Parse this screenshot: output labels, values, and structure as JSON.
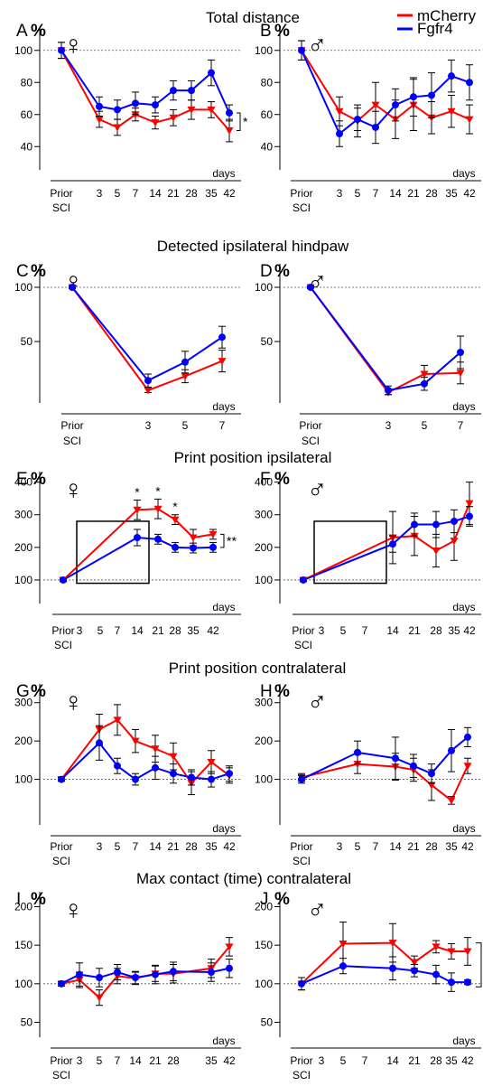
{
  "legend": {
    "entries": [
      {
        "name": "mCherry",
        "color": "#ff0000"
      },
      {
        "name": "Fgfr4",
        "color": "#0000ff"
      }
    ]
  },
  "row_titles": [
    "Total distance",
    "Detected ipsilateral hindpaw",
    "Print position ipsilateral",
    "Print position contralateral",
    "Max contact (time) contralateral"
  ],
  "x_labels": {
    "days": "days",
    "prior": "Prior",
    "sci": "SCI"
  },
  "sex_symbols": {
    "female": "♀",
    "male": "♂"
  },
  "chart_data": [
    {
      "type": "line",
      "panel": "A",
      "unit": "%",
      "sex": "female",
      "x": [
        "Prior SCI",
        "3",
        "5",
        "7",
        "14",
        "21",
        "28",
        "35",
        "42"
      ],
      "ylim": [
        30,
        110
      ],
      "yticks": [
        40,
        60,
        80,
        100
      ],
      "reference_line": 100,
      "series": [
        {
          "name": "mCherry",
          "values": [
            100,
            57,
            52,
            60,
            55,
            58,
            63,
            63,
            50
          ],
          "errors": [
            5,
            5,
            5,
            4,
            4,
            5,
            6,
            5,
            7
          ]
        },
        {
          "name": "Fgfr4",
          "values": [
            100,
            65,
            63,
            67,
            66,
            75,
            75,
            86,
            61
          ],
          "errors": [
            5,
            6,
            6,
            7,
            5,
            6,
            6,
            8,
            5
          ]
        }
      ],
      "annotations": [
        {
          "text": "*",
          "at": "42"
        }
      ]
    },
    {
      "type": "line",
      "panel": "B",
      "unit": "%",
      "sex": "male",
      "x": [
        "Prior SCI",
        "3",
        "5",
        "7",
        "14",
        "21",
        "28",
        "35",
        "42"
      ],
      "ylim": [
        30,
        110
      ],
      "yticks": [
        40,
        60,
        80,
        100
      ],
      "reference_line": 100,
      "series": [
        {
          "name": "mCherry",
          "values": [
            100,
            62,
            56,
            66,
            57,
            66,
            58,
            62,
            57
          ],
          "errors": [
            6,
            9,
            10,
            14,
            12,
            16,
            10,
            10,
            9
          ]
        },
        {
          "name": "Fgfr4",
          "values": [
            100,
            48,
            57,
            52,
            66,
            71,
            72,
            84,
            80
          ],
          "errors": [
            6,
            8,
            7,
            10,
            10,
            12,
            14,
            10,
            11
          ]
        }
      ]
    },
    {
      "type": "line",
      "panel": "C",
      "unit": "%",
      "sex": "female",
      "x": [
        "Prior SCI",
        "3",
        "5",
        "7"
      ],
      "ylim": [
        0,
        115
      ],
      "yticks": [
        50,
        100
      ],
      "reference_line": 100,
      "series": [
        {
          "name": "mCherry",
          "values": [
            100,
            5,
            18,
            32
          ],
          "errors": [
            1,
            2,
            6,
            10
          ]
        },
        {
          "name": "Fgfr4",
          "values": [
            100,
            14,
            31,
            54
          ],
          "errors": [
            1,
            6,
            10,
            10
          ]
        }
      ]
    },
    {
      "type": "line",
      "panel": "D",
      "unit": "%",
      "sex": "male",
      "x": [
        "Prior SCI",
        "3",
        "5",
        "7"
      ],
      "ylim": [
        0,
        115
      ],
      "yticks": [
        50,
        100
      ],
      "reference_line": 100,
      "series": [
        {
          "name": "mCherry",
          "values": [
            100,
            3,
            20,
            21
          ],
          "errors": [
            1,
            2,
            8,
            10
          ]
        },
        {
          "name": "Fgfr4",
          "values": [
            100,
            5,
            11,
            40
          ],
          "errors": [
            1,
            4,
            6,
            15
          ]
        }
      ]
    },
    {
      "type": "line",
      "panel": "E",
      "unit": "%",
      "sex": "female",
      "x": [
        "Prior SCI",
        "3",
        "5",
        "7",
        "14",
        "21",
        "28",
        "35",
        "42"
      ],
      "ylim": [
        50,
        410
      ],
      "yticks": [
        100,
        200,
        300,
        400
      ],
      "reference_line": 100,
      "series": [
        {
          "name": "mCherry",
          "values": [
            100,
            null,
            null,
            null,
            315,
            318,
            285,
            230,
            240
          ],
          "errors": [
            5,
            0,
            0,
            0,
            30,
            30,
            15,
            25,
            15
          ]
        },
        {
          "name": "Fgfr4",
          "values": [
            100,
            null,
            null,
            null,
            230,
            225,
            200,
            198,
            200
          ],
          "errors": [
            5,
            0,
            0,
            0,
            25,
            15,
            15,
            15,
            15
          ]
        }
      ],
      "annotations": [
        {
          "text": "*",
          "at": "14"
        },
        {
          "text": "*",
          "at": "21"
        },
        {
          "text": "*",
          "at": "28"
        },
        {
          "text": "**",
          "at": "42"
        }
      ]
    },
    {
      "type": "line",
      "panel": "F",
      "unit": "%",
      "sex": "male",
      "x": [
        "Prior SCI",
        "3",
        "5",
        "7",
        "14",
        "21",
        "28",
        "35",
        "42"
      ],
      "ylim": [
        50,
        410
      ],
      "yticks": [
        100,
        200,
        300,
        400
      ],
      "reference_line": 100,
      "series": [
        {
          "name": "mCherry",
          "values": [
            100,
            null,
            null,
            null,
            230,
            235,
            190,
            220,
            335
          ],
          "errors": [
            5,
            0,
            0,
            0,
            80,
            60,
            50,
            60,
            65
          ]
        },
        {
          "name": "Fgfr4",
          "values": [
            100,
            null,
            null,
            null,
            210,
            270,
            270,
            280,
            295
          ],
          "errors": [
            5,
            0,
            0,
            0,
            25,
            35,
            40,
            35,
            30
          ]
        }
      ]
    },
    {
      "type": "line",
      "panel": "G",
      "unit": "%",
      "sex": "female",
      "x": [
        "Prior SCI",
        "3",
        "5",
        "7",
        "14",
        "21",
        "28",
        "35",
        "42"
      ],
      "ylim": [
        0,
        330
      ],
      "yticks": [
        100,
        200,
        300
      ],
      "reference_line": 100,
      "series": [
        {
          "name": "mCherry",
          "values": [
            100,
            230,
            255,
            200,
            180,
            160,
            90,
            145,
            110
          ],
          "errors": [
            5,
            40,
            40,
            30,
            35,
            35,
            30,
            30,
            20
          ]
        },
        {
          "name": "Fgfr4",
          "values": [
            100,
            195,
            135,
            100,
            130,
            115,
            105,
            100,
            115
          ],
          "errors": [
            5,
            45,
            20,
            15,
            30,
            25,
            20,
            20,
            20
          ]
        }
      ]
    },
    {
      "type": "line",
      "panel": "H",
      "unit": "%",
      "sex": "male",
      "x": [
        "Prior SCI",
        "3",
        "5",
        "7",
        "14",
        "21",
        "28",
        "35",
        "42"
      ],
      "ylim": [
        0,
        330
      ],
      "yticks": [
        100,
        200,
        300
      ],
      "reference_line": 100,
      "series": [
        {
          "name": "mCherry",
          "values": [
            105,
            null,
            140,
            null,
            133,
            125,
            85,
            45,
            135
          ],
          "errors": [
            10,
            0,
            25,
            0,
            35,
            30,
            40,
            10,
            20
          ]
        },
        {
          "name": "Fgfr4",
          "values": [
            100,
            null,
            170,
            null,
            155,
            135,
            115,
            175,
            210
          ],
          "errors": [
            10,
            0,
            30,
            0,
            55,
            30,
            25,
            55,
            25
          ]
        }
      ]
    },
    {
      "type": "line",
      "panel": "I",
      "unit": "%",
      "sex": "female",
      "x": [
        "Prior SCI",
        "3",
        "5",
        "7",
        "14",
        "21",
        "28",
        "35",
        "42"
      ],
      "ylim": [
        40,
        210
      ],
      "yticks": [
        50,
        100,
        150,
        200
      ],
      "reference_line": 100,
      "series": [
        {
          "name": "mCherry",
          "values": [
            100,
            105,
            82,
            110,
            107,
            113,
            113,
            120,
            148
          ],
          "errors": [
            3,
            10,
            10,
            10,
            8,
            10,
            12,
            12,
            12
          ]
        },
        {
          "name": "Fgfr4",
          "values": [
            100,
            112,
            108,
            115,
            108,
            112,
            116,
            115,
            120
          ],
          "errors": [
            3,
            15,
            12,
            10,
            8,
            12,
            12,
            12,
            12
          ]
        }
      ]
    },
    {
      "type": "line",
      "panel": "J",
      "unit": "%",
      "sex": "male",
      "x": [
        "Prior SCI",
        "3",
        "5",
        "7",
        "14",
        "21",
        "28",
        "35",
        "42"
      ],
      "ylim": [
        40,
        210
      ],
      "yticks": [
        50,
        100,
        150,
        200
      ],
      "reference_line": 100,
      "series": [
        {
          "name": "mCherry",
          "values": [
            100,
            null,
            152,
            null,
            153,
            128,
            148,
            142,
            142
          ],
          "errors": [
            8,
            0,
            28,
            0,
            25,
            8,
            8,
            10,
            18
          ]
        },
        {
          "name": "Fgfr4",
          "values": [
            100,
            null,
            123,
            null,
            120,
            117,
            112,
            102,
            102
          ],
          "errors": [
            8,
            0,
            10,
            0,
            15,
            8,
            12,
            12,
            3
          ]
        }
      ]
    }
  ]
}
